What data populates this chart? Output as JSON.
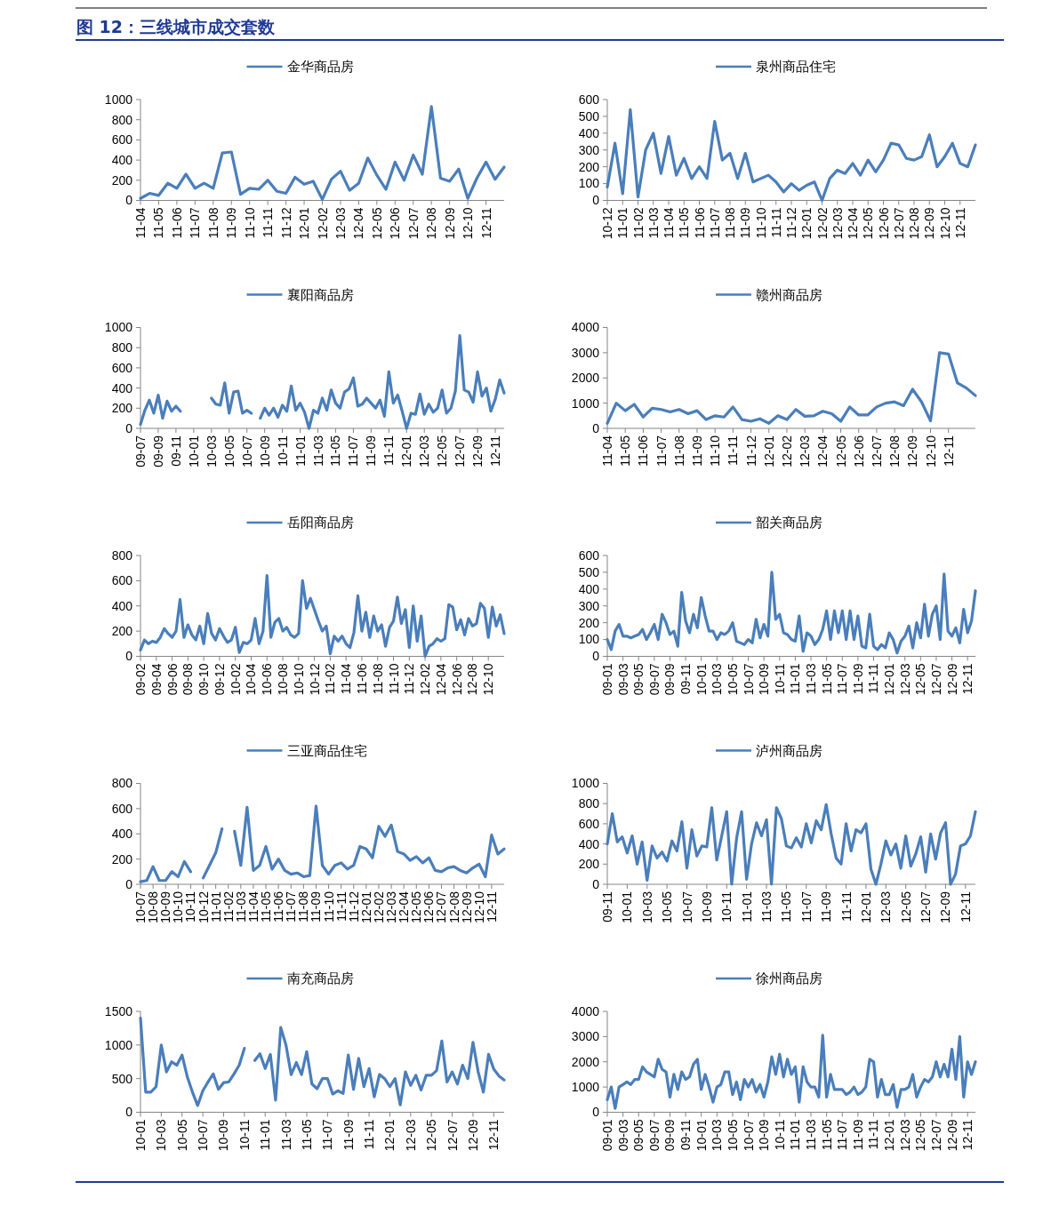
{
  "chart_data": [
    {
      "type": "line",
      "title": "图 12：三线城市成交套数",
      "legend": "top",
      "ylim": [
        0,
        1000
      ],
      "yticks": [
        0,
        200,
        400,
        600,
        800,
        1000
      ],
      "categories": [
        "11-04",
        null,
        "11-05",
        null,
        "11-06",
        null,
        "11-07",
        null,
        "11-08",
        null,
        "11-09",
        null,
        "11-10",
        null,
        "11-11",
        null,
        "11-12",
        null,
        "12-01",
        null,
        "12-02",
        null,
        "12-03",
        null,
        "12-04",
        null,
        "12-05",
        null,
        "12-06",
        null,
        "12-07",
        null,
        "12-08",
        null,
        "12-09",
        null,
        "12-10",
        null,
        "12-11",
        null,
        null
      ],
      "series": [
        {
          "name": "金华商品房",
          "color": "#4a7ebb",
          "values": [
            20,
            70,
            50,
            170,
            120,
            260,
            120,
            170,
            120,
            470,
            480,
            60,
            120,
            110,
            200,
            90,
            70,
            230,
            160,
            190,
            10,
            210,
            290,
            100,
            170,
            420,
            250,
            110,
            380,
            200,
            450,
            260,
            930,
            220,
            190,
            310,
            20,
            220,
            380,
            210,
            330
          ]
        }
      ]
    },
    {
      "type": "line",
      "legend": "top",
      "ylim": [
        0,
        600
      ],
      "yticks": [
        0,
        100,
        200,
        300,
        400,
        500,
        600
      ],
      "categories": [
        "10-12",
        null,
        "11-01",
        null,
        "11-02",
        null,
        "11-03",
        null,
        "11-04",
        null,
        "11-05",
        null,
        "11-06",
        null,
        "11-07",
        null,
        "11-08",
        null,
        "11-09",
        null,
        "11-10",
        null,
        "11-11",
        null,
        "11-12",
        null,
        "12-01",
        null,
        "12-02",
        null,
        "12-03",
        null,
        "12-04",
        null,
        "12-05",
        null,
        "12-06",
        null,
        "12-07",
        null,
        "12-08",
        null,
        "12-09",
        null,
        "12-10",
        null,
        "12-11",
        null,
        null
      ],
      "series": [
        {
          "name": "泉州商品住宅",
          "color": "#4a7ebb",
          "values": [
            80,
            340,
            40,
            540,
            20,
            300,
            400,
            160,
            380,
            150,
            250,
            130,
            200,
            130,
            470,
            240,
            280,
            130,
            280,
            110,
            130,
            150,
            110,
            50,
            100,
            60,
            90,
            110,
            0,
            130,
            180,
            160,
            220,
            150,
            240,
            170,
            240,
            340,
            330,
            250,
            240,
            260,
            390,
            200,
            260,
            340,
            220,
            200,
            330
          ]
        }
      ]
    },
    {
      "type": "line",
      "legend": "top",
      "ylim": [
        0,
        1000
      ],
      "yticks": [
        0,
        200,
        400,
        600,
        800,
        1000
      ],
      "categories": [
        "09-07",
        null,
        null,
        null,
        "09-09",
        null,
        null,
        null,
        "09-11",
        null,
        null,
        null,
        "10-01",
        null,
        null,
        null,
        "10-03",
        null,
        null,
        null,
        "10-05",
        null,
        null,
        null,
        "10-07",
        null,
        null,
        null,
        "10-09",
        null,
        null,
        null,
        "10-11",
        null,
        null,
        null,
        "11-01",
        null,
        null,
        null,
        "11-03",
        null,
        null,
        null,
        "11-05",
        null,
        null,
        null,
        "11-07",
        null,
        null,
        null,
        "11-09",
        null,
        null,
        null,
        "11-11",
        null,
        null,
        null,
        "12-01",
        null,
        null,
        null,
        "12-03",
        null,
        null,
        null,
        "12-05",
        null,
        null,
        null,
        "12-07",
        null,
        null,
        null,
        "12-09",
        null,
        null,
        null,
        "12-11",
        null,
        null
      ],
      "series": [
        {
          "name": "襄阳商品房",
          "color": "#4a7ebb",
          "values": [
            40,
            180,
            280,
            150,
            330,
            100,
            270,
            170,
            220,
            170,
            null,
            null,
            null,
            null,
            null,
            null,
            300,
            240,
            230,
            450,
            150,
            360,
            370,
            150,
            180,
            150,
            null,
            100,
            200,
            130,
            200,
            110,
            230,
            170,
            420,
            180,
            250,
            160,
            0,
            180,
            150,
            300,
            180,
            380,
            250,
            200,
            360,
            390,
            500,
            220,
            240,
            300,
            250,
            200,
            280,
            120,
            560,
            250,
            330,
            170,
            0,
            150,
            140,
            340,
            140,
            240,
            160,
            200,
            380,
            150,
            200,
            370,
            920,
            380,
            360,
            260,
            560,
            320,
            400,
            170,
            290,
            480,
            350
          ]
        }
      ]
    },
    {
      "type": "line",
      "legend": "top",
      "ylim": [
        0,
        4000
      ],
      "yticks": [
        0,
        1000,
        2000,
        3000,
        4000
      ],
      "categories": [
        "11-04",
        null,
        "11-05",
        null,
        "11-06",
        null,
        "11-07",
        null,
        "11-08",
        null,
        "11-09",
        null,
        "11-10",
        null,
        "11-11",
        null,
        "11-12",
        null,
        "12-01",
        null,
        "12-02",
        null,
        "12-03",
        null,
        "12-04",
        null,
        "12-05",
        null,
        "12-06",
        null,
        "12-07",
        null,
        "12-08",
        null,
        "12-09",
        null,
        "12-10",
        null,
        "12-11",
        null,
        null,
        null
      ],
      "series": [
        {
          "name": "赣州商品房",
          "color": "#4a7ebb",
          "values": [
            200,
            1000,
            700,
            950,
            450,
            800,
            750,
            650,
            750,
            580,
            700,
            350,
            500,
            450,
            850,
            350,
            280,
            380,
            200,
            500,
            350,
            750,
            480,
            500,
            680,
            580,
            280,
            850,
            530,
            530,
            850,
            1000,
            1050,
            900,
            1550,
            1050,
            300,
            3000,
            2950,
            1800,
            1600,
            1300
          ]
        }
      ]
    },
    {
      "type": "line",
      "legend": "top",
      "ylim": [
        0,
        800
      ],
      "yticks": [
        0,
        200,
        400,
        600,
        800
      ],
      "categories": [
        "09-02",
        null,
        null,
        null,
        "09-04",
        null,
        null,
        null,
        "09-06",
        null,
        null,
        null,
        "09-08",
        null,
        null,
        null,
        "09-10",
        null,
        null,
        null,
        "09-12",
        null,
        null,
        null,
        "10-02",
        null,
        null,
        null,
        "10-04",
        null,
        null,
        null,
        "10-06",
        null,
        null,
        null,
        "10-08",
        null,
        null,
        null,
        "10-10",
        null,
        null,
        null,
        "10-12",
        null,
        null,
        null,
        "11-02",
        null,
        null,
        null,
        "11-04",
        null,
        null,
        null,
        "11-06",
        null,
        null,
        null,
        "11-08",
        null,
        null,
        null,
        "11-10",
        null,
        null,
        null,
        "11-12",
        null,
        null,
        null,
        "12-02",
        null,
        null,
        null,
        "12-04",
        null,
        null,
        null,
        "12-06",
        null,
        null,
        null,
        "12-08",
        null,
        null,
        null,
        "12-10",
        null,
        null,
        null,
        null
      ],
      "series": [
        {
          "name": "岳阳商品房",
          "color": "#4a7ebb",
          "values": [
            50,
            130,
            100,
            120,
            110,
            150,
            220,
            180,
            150,
            200,
            450,
            150,
            250,
            170,
            130,
            240,
            100,
            340,
            180,
            130,
            220,
            160,
            110,
            130,
            230,
            30,
            110,
            100,
            130,
            300,
            100,
            200,
            640,
            150,
            270,
            300,
            200,
            230,
            170,
            150,
            180,
            600,
            380,
            460,
            370,
            280,
            200,
            240,
            20,
            160,
            120,
            160,
            100,
            70,
            190,
            480,
            200,
            350,
            150,
            320,
            200,
            250,
            80,
            230,
            280,
            470,
            260,
            370,
            70,
            400,
            120,
            320,
            0,
            80,
            100,
            140,
            120,
            140,
            410,
            390,
            210,
            290,
            170,
            300,
            240,
            260,
            420,
            380,
            150,
            390,
            240,
            330,
            180
          ]
        }
      ]
    },
    {
      "type": "line",
      "legend": "top",
      "ylim": [
        0,
        600
      ],
      "yticks": [
        0,
        100,
        200,
        300,
        400,
        500,
        600
      ],
      "categories": [
        "09-01",
        null,
        null,
        null,
        "09-03",
        null,
        null,
        null,
        "09-05",
        null,
        null,
        null,
        "09-07",
        null,
        null,
        null,
        "09-09",
        null,
        null,
        null,
        "09-11",
        null,
        null,
        null,
        "10-01",
        null,
        null,
        null,
        "10-03",
        null,
        null,
        null,
        "10-05",
        null,
        null,
        null,
        "10-07",
        null,
        null,
        null,
        "10-09",
        null,
        null,
        null,
        "10-11",
        null,
        null,
        null,
        "11-01",
        null,
        null,
        null,
        "11-03",
        null,
        null,
        null,
        "11-05",
        null,
        null,
        null,
        "11-07",
        null,
        null,
        null,
        "11-09",
        null,
        null,
        null,
        "11-11",
        null,
        null,
        null,
        "12-01",
        null,
        null,
        null,
        "12-03",
        null,
        null,
        null,
        "12-05",
        null,
        null,
        null,
        "12-07",
        null,
        null,
        null,
        "12-09",
        null,
        null,
        null,
        "12-11",
        null,
        null
      ],
      "series": [
        {
          "name": "韶关商品房",
          "color": "#4a7ebb",
          "values": [
            100,
            40,
            150,
            190,
            120,
            120,
            110,
            120,
            130,
            160,
            100,
            140,
            190,
            100,
            250,
            200,
            130,
            150,
            60,
            380,
            210,
            140,
            250,
            170,
            350,
            240,
            150,
            150,
            100,
            140,
            130,
            150,
            200,
            90,
            80,
            70,
            100,
            80,
            220,
            110,
            190,
            120,
            500,
            220,
            250,
            140,
            130,
            100,
            90,
            240,
            30,
            140,
            120,
            70,
            100,
            160,
            270,
            100,
            270,
            140,
            270,
            100,
            270,
            100,
            240,
            60,
            50,
            250,
            60,
            40,
            70,
            50,
            140,
            100,
            20,
            90,
            120,
            180,
            50,
            200,
            110,
            310,
            120,
            250,
            300,
            100,
            490,
            150,
            120,
            170,
            80,
            280,
            140,
            210,
            390
          ]
        }
      ]
    },
    {
      "type": "line",
      "legend": "top",
      "ylim": [
        0,
        800
      ],
      "yticks": [
        0,
        200,
        400,
        600,
        800
      ],
      "categories": [
        "10-07",
        null,
        "10-08",
        null,
        "10-09",
        null,
        "10-10",
        null,
        "10-11",
        null,
        "10-12",
        null,
        "11-01",
        null,
        "11-02",
        null,
        "11-03",
        null,
        "11-04",
        null,
        "11-05",
        null,
        "11-06",
        null,
        "11-07",
        null,
        "11-08",
        null,
        "11-09",
        null,
        "11-10",
        null,
        "11-11",
        null,
        "11-12",
        null,
        "12-01",
        null,
        "12-02",
        null,
        "12-03",
        null,
        "12-04",
        null,
        "12-05",
        null,
        "12-06",
        null,
        "12-07",
        null,
        "12-08",
        null,
        "12-09",
        null,
        "12-10",
        null,
        "12-11",
        null,
        null
      ],
      "series": [
        {
          "name": "三亚商品住宅",
          "color": "#4a7ebb",
          "values": [
            20,
            30,
            140,
            30,
            30,
            100,
            60,
            180,
            100,
            null,
            50,
            150,
            250,
            440,
            null,
            420,
            150,
            610,
            110,
            150,
            300,
            120,
            200,
            110,
            80,
            90,
            60,
            70,
            620,
            150,
            80,
            150,
            170,
            120,
            150,
            300,
            280,
            210,
            460,
            380,
            470,
            260,
            240,
            190,
            220,
            170,
            210,
            110,
            100,
            130,
            140,
            110,
            90,
            130,
            160,
            60,
            390,
            240,
            280
          ]
        }
      ]
    },
    {
      "type": "line",
      "legend": "top",
      "ylim": [
        0,
        1000
      ],
      "yticks": [
        0,
        200,
        400,
        600,
        800,
        1000
      ],
      "categories": [
        "09-11",
        null,
        null,
        null,
        "10-01",
        null,
        null,
        null,
        "10-03",
        null,
        null,
        null,
        "10-05",
        null,
        null,
        null,
        "10-07",
        null,
        null,
        null,
        "10-09",
        null,
        null,
        null,
        "10-11",
        null,
        null,
        null,
        "11-01",
        null,
        null,
        null,
        "11-03",
        null,
        null,
        null,
        "11-05",
        null,
        null,
        null,
        "11-07",
        null,
        null,
        null,
        "11-09",
        null,
        null,
        null,
        "11-11",
        null,
        null,
        null,
        "12-01",
        null,
        null,
        null,
        "12-03",
        null,
        null,
        null,
        "12-05",
        null,
        null,
        null,
        "12-07",
        null,
        null,
        null,
        "12-09",
        null,
        null,
        null,
        "12-11",
        null,
        null
      ],
      "series": [
        {
          "name": "泸州商品房",
          "color": "#4a7ebb",
          "values": [
            400,
            700,
            420,
            470,
            310,
            480,
            200,
            420,
            40,
            380,
            260,
            320,
            230,
            430,
            330,
            620,
            160,
            540,
            280,
            380,
            370,
            760,
            240,
            480,
            720,
            0,
            460,
            720,
            50,
            400,
            610,
            480,
            640,
            0,
            760,
            650,
            380,
            360,
            460,
            370,
            600,
            410,
            630,
            540,
            790,
            500,
            260,
            200,
            600,
            330,
            540,
            510,
            600,
            150,
            0,
            200,
            430,
            290,
            400,
            160,
            480,
            180,
            300,
            470,
            120,
            500,
            250,
            510,
            610,
            0,
            100,
            380,
            400,
            480,
            720
          ]
        }
      ]
    },
    {
      "type": "line",
      "legend": "top",
      "ylim": [
        0,
        1500
      ],
      "yticks": [
        0,
        500,
        1000,
        1500
      ],
      "categories": [
        "10-01",
        null,
        null,
        null,
        "10-03",
        null,
        null,
        null,
        "10-05",
        null,
        null,
        null,
        "10-07",
        null,
        null,
        null,
        "10-09",
        null,
        null,
        null,
        "10-11",
        null,
        null,
        null,
        "11-01",
        null,
        null,
        null,
        "11-03",
        null,
        null,
        null,
        "11-05",
        null,
        null,
        null,
        "11-07",
        null,
        null,
        null,
        "11-09",
        null,
        null,
        null,
        "11-11",
        null,
        null,
        null,
        "12-01",
        null,
        null,
        null,
        "12-03",
        null,
        null,
        null,
        "12-05",
        null,
        null,
        null,
        "12-07",
        null,
        null,
        null,
        "12-09",
        null,
        null,
        null,
        "12-11",
        null,
        null
      ],
      "series": [
        {
          "name": "南充商品房",
          "color": "#4a7ebb",
          "values": [
            1400,
            300,
            300,
            380,
            1000,
            600,
            750,
            700,
            850,
            530,
            300,
            100,
            320,
            450,
            570,
            340,
            440,
            450,
            570,
            700,
            950,
            null,
            770,
            870,
            650,
            860,
            180,
            1260,
            1000,
            560,
            740,
            560,
            900,
            420,
            350,
            500,
            500,
            270,
            320,
            280,
            850,
            340,
            800,
            380,
            650,
            230,
            560,
            500,
            380,
            500,
            110,
            600,
            400,
            550,
            330,
            550,
            550,
            620,
            1060,
            450,
            600,
            420,
            700,
            500,
            1040,
            600,
            300,
            860,
            640,
            540,
            480
          ]
        }
      ]
    },
    {
      "type": "line",
      "legend": "top",
      "ylim": [
        0,
        4000
      ],
      "yticks": [
        0,
        1000,
        2000,
        3000,
        4000
      ],
      "categories": [
        "09-01",
        null,
        null,
        null,
        "09-03",
        null,
        null,
        null,
        "09-05",
        null,
        null,
        null,
        "09-07",
        null,
        null,
        null,
        "09-09",
        null,
        null,
        null,
        "09-11",
        null,
        null,
        null,
        "10-01",
        null,
        null,
        null,
        "10-03",
        null,
        null,
        null,
        "10-05",
        null,
        null,
        null,
        "10-07",
        null,
        null,
        null,
        "10-09",
        null,
        null,
        null,
        "10-11",
        null,
        null,
        null,
        "11-01",
        null,
        null,
        null,
        "11-03",
        null,
        null,
        null,
        "11-05",
        null,
        null,
        null,
        "11-07",
        null,
        null,
        null,
        "11-09",
        null,
        null,
        null,
        "11-11",
        null,
        null,
        null,
        "12-01",
        null,
        null,
        null,
        "12-03",
        null,
        null,
        null,
        "12-05",
        null,
        null,
        null,
        "12-07",
        null,
        null,
        null,
        "12-09",
        null,
        null,
        null,
        "12-11",
        null,
        null
      ],
      "series": [
        {
          "name": "徐州商品房",
          "color": "#4a7ebb",
          "values": [
            500,
            1000,
            150,
            1000,
            1100,
            1200,
            1100,
            1300,
            1300,
            1800,
            1600,
            1500,
            1400,
            2100,
            1700,
            1600,
            600,
            1500,
            900,
            1600,
            1300,
            1400,
            1900,
            2100,
            900,
            1500,
            1000,
            400,
            1000,
            1100,
            1600,
            1600,
            700,
            1200,
            500,
            1300,
            1000,
            1300,
            800,
            1100,
            600,
            1200,
            2200,
            1500,
            2300,
            1400,
            2100,
            1500,
            1800,
            400,
            1800,
            1200,
            1000,
            1000,
            600,
            3050,
            600,
            1500,
            900,
            900,
            900,
            700,
            800,
            1000,
            700,
            800,
            1000,
            2100,
            2000,
            600,
            1300,
            700,
            700,
            1100,
            200,
            900,
            900,
            1000,
            1500,
            600,
            1000,
            1300,
            1200,
            1400,
            2000,
            1400,
            1900,
            1400,
            2500,
            1300,
            3000,
            600,
            2000,
            1500,
            2000
          ]
        }
      ]
    }
  ]
}
